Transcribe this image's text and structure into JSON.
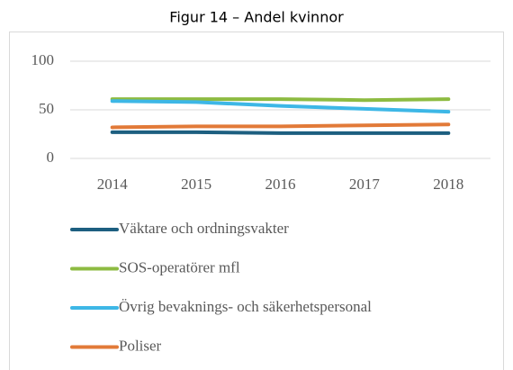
{
  "chart_data": {
    "type": "line",
    "title": "Figur 14 – Andel kvinnor",
    "categories": [
      "2014",
      "2015",
      "2016",
      "2017",
      "2018"
    ],
    "series": [
      {
        "name": "Väktare och ordningsvakter",
        "color": "#1d5f80",
        "values": [
          27,
          27,
          26,
          26,
          26
        ]
      },
      {
        "name": "SOS-operatörer mfl",
        "color": "#8dbb41",
        "values": [
          61,
          61,
          61,
          60,
          61
        ]
      },
      {
        "name": "Övrig bevaknings- och säkerhetspersonal",
        "color": "#3db7e6",
        "values": [
          59,
          58,
          54,
          51,
          48
        ]
      },
      {
        "name": "Poliser",
        "color": "#e27a38",
        "values": [
          32,
          33,
          33,
          34,
          35
        ]
      }
    ],
    "ylim": [
      0,
      100
    ],
    "yticks": [
      0,
      50,
      100
    ],
    "grid": true,
    "legend": "bottom"
  }
}
